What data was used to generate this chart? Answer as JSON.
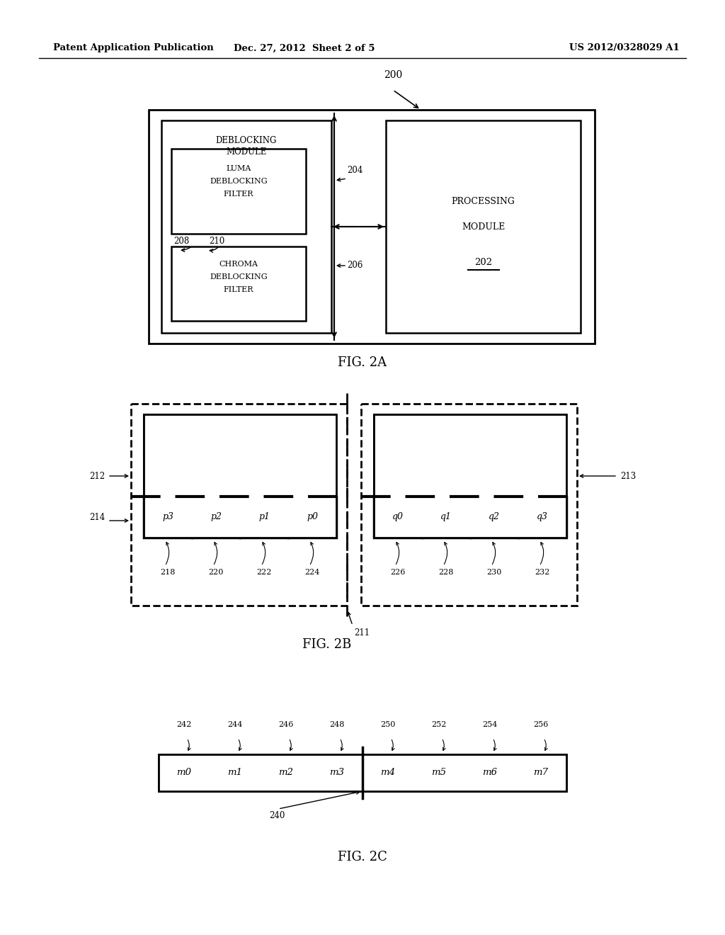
{
  "bg_color": "#ffffff",
  "header_left": "Patent Application Publication",
  "header_center": "Dec. 27, 2012  Sheet 2 of 5",
  "header_right": "US 2012/0328029 A1",
  "fig2a_label": "FIG. 2A",
  "fig2b_label": "FIG. 2B",
  "fig2c_label": "FIG. 2C",
  "label_200": "200",
  "label_202": "202",
  "label_204": "204",
  "label_206": "206",
  "label_208": "208",
  "label_210": "210",
  "label_211": "211",
  "label_212": "212",
  "label_213": "213",
  "label_214": "214",
  "label_240": "240",
  "deblocking_lines": [
    "DEBLOCKING",
    "MODULE"
  ],
  "luma_lines": [
    "LUMA",
    "DEBLOCKING",
    "FILTER"
  ],
  "chroma_lines": [
    "CHROMA",
    "DEBLOCKING",
    "FILTER"
  ],
  "processing_lines": [
    "PROCESSING",
    "MODULE"
  ],
  "p_labels": [
    "p3",
    "p2",
    "p1",
    "p0"
  ],
  "q_labels": [
    "q0",
    "q1",
    "q2",
    "q3"
  ],
  "nums_left": [
    "218",
    "220",
    "222",
    "224"
  ],
  "nums_right": [
    "226",
    "228",
    "230",
    "232"
  ],
  "m_labels": [
    "m0",
    "m1",
    "m2",
    "m3",
    "m4",
    "m5",
    "m6",
    "m7"
  ],
  "top_nums": [
    "242",
    "244",
    "246",
    "248",
    "250",
    "252",
    "254",
    "256"
  ]
}
